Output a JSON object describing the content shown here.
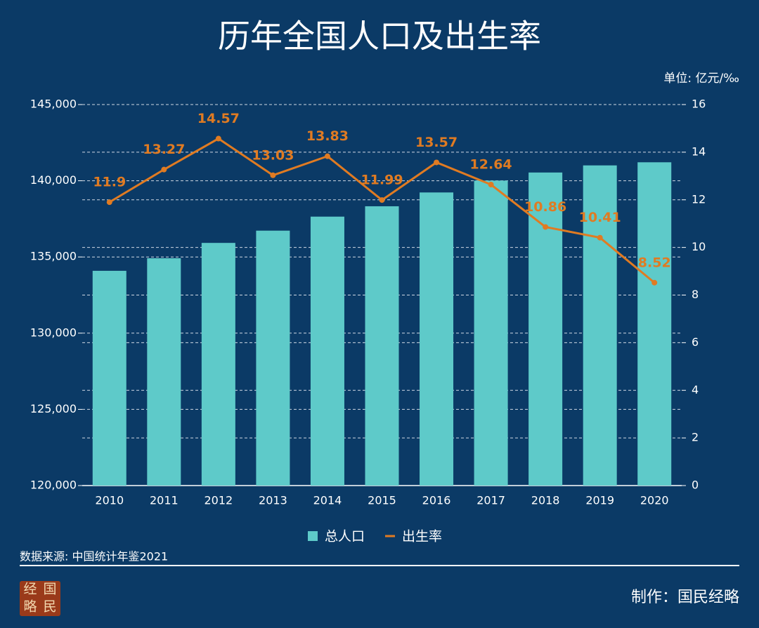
{
  "chart_data": {
    "type": "bar-line",
    "title": "历年全国人口及出生率",
    "unit": "单位: 亿元/‰",
    "categories": [
      "2010",
      "2011",
      "2012",
      "2013",
      "2014",
      "2015",
      "2016",
      "2017",
      "2018",
      "2019",
      "2020"
    ],
    "series": [
      {
        "name": "总人口",
        "type": "bar",
        "color": "#5ecac9",
        "values": [
          134091,
          134916,
          135922,
          136726,
          137646,
          138326,
          139232,
          140011,
          140541,
          141008,
          141212
        ]
      },
      {
        "name": "出生率",
        "type": "line",
        "axis": "y2",
        "color": "#e07b22",
        "values": [
          11.9,
          13.27,
          14.57,
          13.03,
          13.83,
          11.99,
          13.57,
          12.64,
          10.86,
          10.41,
          8.52
        ]
      }
    ],
    "ylim": [
      120000,
      145000
    ],
    "yticks": [
      {
        "value": 120000,
        "label": "120,000"
      },
      {
        "value": 125000,
        "label": "125,000"
      },
      {
        "value": 130000,
        "label": "130,000"
      },
      {
        "value": 135000,
        "label": "135,000"
      },
      {
        "value": 140000,
        "label": "140,000"
      },
      {
        "value": 145000,
        "label": "145,000"
      }
    ],
    "y2lim": [
      0,
      16
    ],
    "y2ticks": [
      0,
      2,
      4,
      6,
      8,
      10,
      12,
      14,
      16
    ],
    "grid": true,
    "legend": "bottom"
  },
  "footer": {
    "source": "数据来源: 中国统计年鉴2021",
    "credit": "制作：国民经略",
    "logo": [
      "经",
      "国",
      "略",
      "民"
    ]
  }
}
